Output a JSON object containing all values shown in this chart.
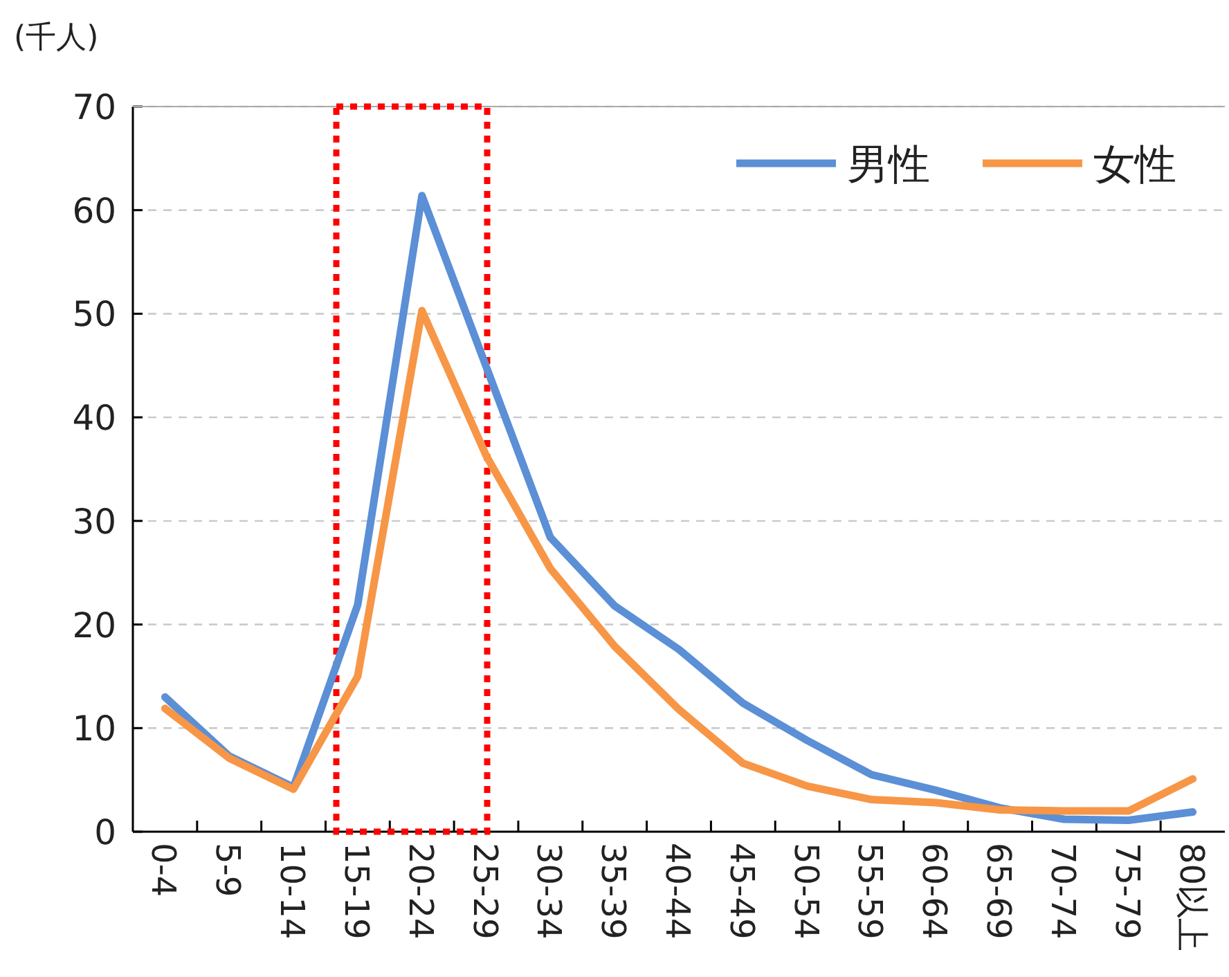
{
  "chart_data": {
    "type": "line",
    "ylabel": "(千人)",
    "categories": [
      "0-4",
      "5-9",
      "10-14",
      "15-19",
      "20-24",
      "25-29",
      "30-34",
      "35-39",
      "40-44",
      "45-49",
      "50-54",
      "55-59",
      "60-64",
      "65-69",
      "70-74",
      "75-79",
      "80以上"
    ],
    "series": [
      {
        "name": "男性",
        "color": "#5b8fd6",
        "values": [
          13,
          7.3,
          4.3,
          21.9,
          61.4,
          44.9,
          28.4,
          21.8,
          17.6,
          12.4,
          8.8,
          5.5,
          4,
          2.3,
          1.2,
          1.1,
          1.9
        ]
      },
      {
        "name": "女性",
        "color": "#f79646",
        "values": [
          11.9,
          7.1,
          4.1,
          15,
          50.3,
          36.3,
          25.4,
          17.9,
          11.8,
          6.6,
          4.4,
          3.1,
          2.8,
          2.1,
          2,
          2,
          5.1
        ]
      }
    ],
    "ylim": [
      0,
      70
    ],
    "yticks": [
      0,
      10,
      20,
      30,
      40,
      50,
      60,
      70
    ],
    "grid": "y",
    "legend": "top right",
    "line_style": "solid",
    "marker": "none"
  }
}
